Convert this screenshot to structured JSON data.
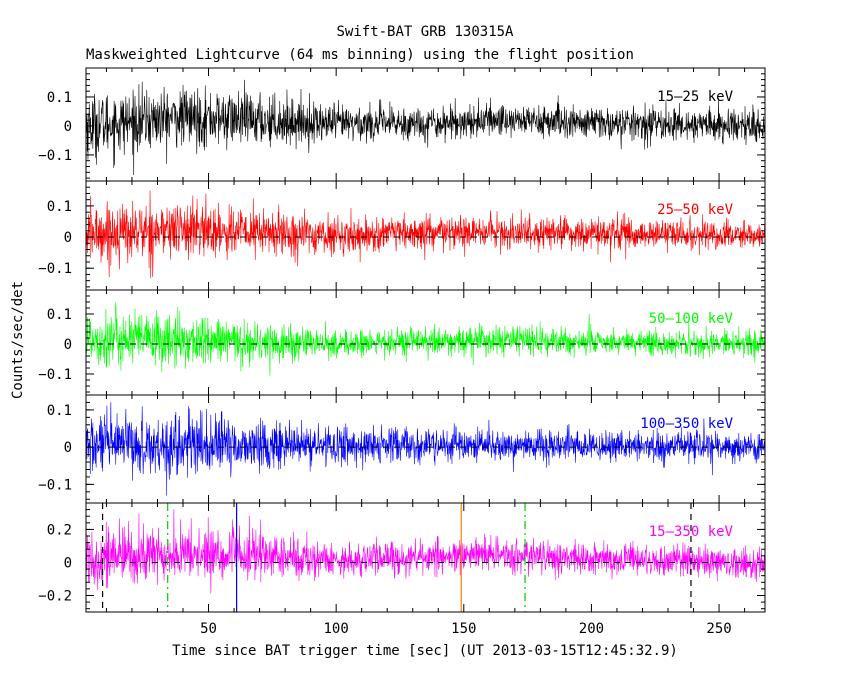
{
  "chart_data": {
    "type": "line",
    "title": "Swift-BAT GRB 130315A",
    "subtitle": "Maskweighted Lightcurve (64 ms binning) using the flight position",
    "xlabel": "Time since BAT trigger time [sec] (UT 2013-03-15T12:45:32.9)",
    "ylabel": "Counts/sec/det",
    "xlim": [
      2,
      268
    ],
    "x_ticks": [
      50,
      100,
      150,
      200,
      250
    ],
    "binning_sec": 0.064,
    "grid": false,
    "panels": [
      {
        "name": "15-25 keV",
        "label": "15–25 keV",
        "color": "#000000",
        "ylim": [
          -0.19,
          0.2
        ],
        "y_ticks": [
          -0.1,
          0,
          0.1
        ],
        "y_tick_labels": [
          "−0.1",
          "0",
          "0.1"
        ],
        "zero_line": false,
        "noise_envelope": [
          {
            "t": 2,
            "rms": 0.055
          },
          {
            "t": 40,
            "rms": 0.05
          },
          {
            "t": 70,
            "rms": 0.045
          },
          {
            "t": 100,
            "rms": 0.032
          },
          {
            "t": 150,
            "rms": 0.028
          },
          {
            "t": 165,
            "rms": 0.03
          },
          {
            "t": 200,
            "rms": 0.028
          },
          {
            "t": 268,
            "rms": 0.028
          }
        ],
        "signal": [
          {
            "t": 2,
            "mean": 0.0
          },
          {
            "t": 40,
            "mean": 0.03
          },
          {
            "t": 70,
            "mean": 0.02
          },
          {
            "t": 100,
            "mean": 0.008
          },
          {
            "t": 140,
            "mean": 0.01
          },
          {
            "t": 165,
            "mean": 0.022
          },
          {
            "t": 200,
            "mean": 0.01
          },
          {
            "t": 268,
            "mean": 0.0
          }
        ]
      },
      {
        "name": "25-50 keV",
        "label": "25–50 keV",
        "color": "#ff0000",
        "ylim": [
          -0.17,
          0.18
        ],
        "y_ticks": [
          -0.1,
          0,
          0.1
        ],
        "y_tick_labels": [
          "−0.1",
          "0",
          "0.1"
        ],
        "zero_line": true,
        "noise_envelope": [
          {
            "t": 2,
            "rms": 0.048
          },
          {
            "t": 40,
            "rms": 0.045
          },
          {
            "t": 70,
            "rms": 0.04
          },
          {
            "t": 100,
            "rms": 0.028
          },
          {
            "t": 160,
            "rms": 0.026
          },
          {
            "t": 268,
            "rms": 0.024
          }
        ],
        "signal": [
          {
            "t": 2,
            "mean": 0.01
          },
          {
            "t": 40,
            "mean": 0.025
          },
          {
            "t": 70,
            "mean": 0.015
          },
          {
            "t": 100,
            "mean": 0.005
          },
          {
            "t": 160,
            "mean": 0.015
          },
          {
            "t": 268,
            "mean": 0.005
          }
        ]
      },
      {
        "name": "50-100 keV",
        "label": "50–100 keV",
        "color": "#00ff00",
        "ylim": [
          -0.17,
          0.18
        ],
        "y_ticks": [
          -0.1,
          0,
          0.1
        ],
        "y_tick_labels": [
          "−0.1",
          "0",
          "0.1"
        ],
        "zero_line": true,
        "noise_envelope": [
          {
            "t": 2,
            "rms": 0.05
          },
          {
            "t": 30,
            "rms": 0.045
          },
          {
            "t": 70,
            "rms": 0.035
          },
          {
            "t": 100,
            "rms": 0.022
          },
          {
            "t": 160,
            "rms": 0.024
          },
          {
            "t": 268,
            "rms": 0.02
          }
        ],
        "signal": [
          {
            "t": 2,
            "mean": 0.02
          },
          {
            "t": 40,
            "mean": 0.01
          },
          {
            "t": 100,
            "mean": 0.0
          },
          {
            "t": 160,
            "mean": 0.012
          },
          {
            "t": 268,
            "mean": 0.0
          }
        ]
      },
      {
        "name": "100-350 keV",
        "label": "100–350 keV",
        "color": "#0000ff",
        "ylim": [
          -0.15,
          0.14
        ],
        "y_ticks": [
          -0.1,
          0,
          0.1
        ],
        "y_tick_labels": [
          "−0.1",
          "0",
          "0.1"
        ],
        "zero_line": true,
        "noise_envelope": [
          {
            "t": 2,
            "rms": 0.042
          },
          {
            "t": 40,
            "rms": 0.04
          },
          {
            "t": 70,
            "rms": 0.035
          },
          {
            "t": 100,
            "rms": 0.025
          },
          {
            "t": 160,
            "rms": 0.022
          },
          {
            "t": 268,
            "rms": 0.02
          }
        ],
        "signal": [
          {
            "t": 2,
            "mean": 0.005
          },
          {
            "t": 60,
            "mean": 0.005
          },
          {
            "t": 160,
            "mean": 0.003
          },
          {
            "t": 268,
            "mean": 0.0
          }
        ]
      },
      {
        "name": "15-350 keV",
        "label": "15–350 keV",
        "color": "#ff00ff",
        "ylim": [
          -0.3,
          0.36
        ],
        "y_ticks": [
          -0.2,
          0,
          0.2
        ],
        "y_tick_labels": [
          "−0.2",
          "0",
          "0.2"
        ],
        "zero_line": true,
        "noise_envelope": [
          {
            "t": 2,
            "rms": 0.09
          },
          {
            "t": 40,
            "rms": 0.085
          },
          {
            "t": 70,
            "rms": 0.075
          },
          {
            "t": 100,
            "rms": 0.05
          },
          {
            "t": 160,
            "rms": 0.05
          },
          {
            "t": 268,
            "rms": 0.045
          }
        ],
        "signal": [
          {
            "t": 2,
            "mean": 0.03
          },
          {
            "t": 40,
            "mean": 0.05
          },
          {
            "t": 70,
            "mean": 0.04
          },
          {
            "t": 100,
            "mean": 0.015
          },
          {
            "t": 165,
            "mean": 0.045
          },
          {
            "t": 200,
            "mean": 0.02
          },
          {
            "t": 268,
            "mean": 0.0
          }
        ]
      }
    ],
    "markers": [
      {
        "t": 8.5,
        "color": "#000000",
        "style": "dashed"
      },
      {
        "t": 34,
        "color": "#00cc00",
        "style": "dashdot"
      },
      {
        "t": 61,
        "color": "#0000ff",
        "style": "solid"
      },
      {
        "t": 149,
        "color": "#ff8000",
        "style": "solid"
      },
      {
        "t": 174,
        "color": "#00cc00",
        "style": "dashdot"
      },
      {
        "t": 239,
        "color": "#000000",
        "style": "dashed"
      }
    ]
  }
}
